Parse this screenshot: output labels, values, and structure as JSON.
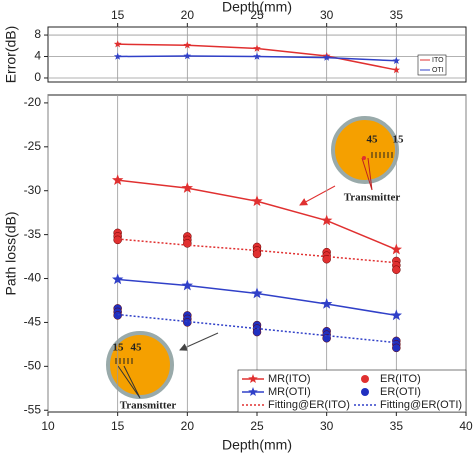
{
  "chart_data": [
    {
      "type": "line",
      "xlabel": "Depth(mm)",
      "ylabel": "Error(dB)",
      "xaxis_position": "top",
      "xlim": [
        10,
        40
      ],
      "xticks": [
        15,
        20,
        25,
        30,
        35
      ],
      "ylim": [
        -0.75,
        9.5
      ],
      "yticks": [
        0,
        4,
        8
      ],
      "grid": "both",
      "x": [
        15,
        20,
        25,
        30,
        35
      ],
      "series": [
        {
          "name": "ITO",
          "color": "#e03030",
          "marker": "star",
          "linestyle": "solid",
          "values": [
            6.3,
            6.1,
            5.5,
            4.1,
            1.5
          ]
        },
        {
          "name": "OTI",
          "color": "#3040c8",
          "marker": "star",
          "linestyle": "solid",
          "values": [
            4.0,
            4.1,
            4.0,
            3.8,
            3.2
          ]
        }
      ]
    },
    {
      "type": "line",
      "xlabel": "Depth(mm)",
      "ylabel": "Path loss(dB)",
      "xlim": [
        10,
        40
      ],
      "xticks": [
        10,
        15,
        20,
        25,
        30,
        35,
        40
      ],
      "ylim": [
        -55.2,
        -19.1
      ],
      "yticks": [
        -20,
        -25,
        -30,
        -35,
        -40,
        -45,
        -50,
        -55
      ],
      "grid": "x",
      "x": [
        15,
        20,
        25,
        30,
        35
      ],
      "series": [
        {
          "name": "MR(ITO)",
          "color": "#e03030",
          "marker": "star",
          "linestyle": "solid",
          "values": [
            -28.8,
            -29.7,
            -31.2,
            -33.4,
            -36.7
          ]
        },
        {
          "name": "ER(ITO)",
          "color": "#e03030",
          "marker": "circle",
          "linestyle": "none",
          "x": [
            15,
            15,
            15,
            20,
            20,
            20,
            25,
            25,
            25,
            30,
            30,
            30,
            35,
            35,
            35
          ],
          "values": [
            -34.8,
            -35.2,
            -35.6,
            -35.2,
            -35.6,
            -36.0,
            -36.4,
            -36.8,
            -37.2,
            -37.0,
            -37.4,
            -37.8,
            -38.0,
            -38.5,
            -39.0
          ]
        },
        {
          "name": "MR(OTI)",
          "color": "#3040c8",
          "marker": "star",
          "linestyle": "solid",
          "values": [
            -40.1,
            -40.8,
            -41.7,
            -42.9,
            -44.2
          ]
        },
        {
          "name": "ER(OTI)",
          "color": "#2030c0",
          "marker": "circle",
          "linestyle": "none",
          "x": [
            15,
            15,
            15,
            20,
            20,
            20,
            25,
            25,
            25,
            30,
            30,
            30,
            35,
            35,
            35
          ],
          "values": [
            -43.4,
            -43.8,
            -44.2,
            -44.2,
            -44.6,
            -45.0,
            -45.3,
            -45.7,
            -46.1,
            -46.0,
            -46.4,
            -46.8,
            -47.1,
            -47.5,
            -47.9
          ]
        },
        {
          "name": "Fitting@ER(ITO)",
          "color": "#e03030",
          "marker": "none",
          "linestyle": "dotted",
          "values": [
            -35.5,
            -36.2,
            -36.8,
            -37.5,
            -38.2
          ]
        },
        {
          "name": "Fitting@ER(OTI)",
          "color": "#3040c8",
          "marker": "none",
          "linestyle": "dotted",
          "values": [
            -44.1,
            -44.9,
            -45.7,
            -46.5,
            -47.3
          ]
        }
      ],
      "annotations": [
        "Transmitter",
        "45",
        "15",
        "Transmitter",
        "15",
        "45"
      ]
    }
  ]
}
